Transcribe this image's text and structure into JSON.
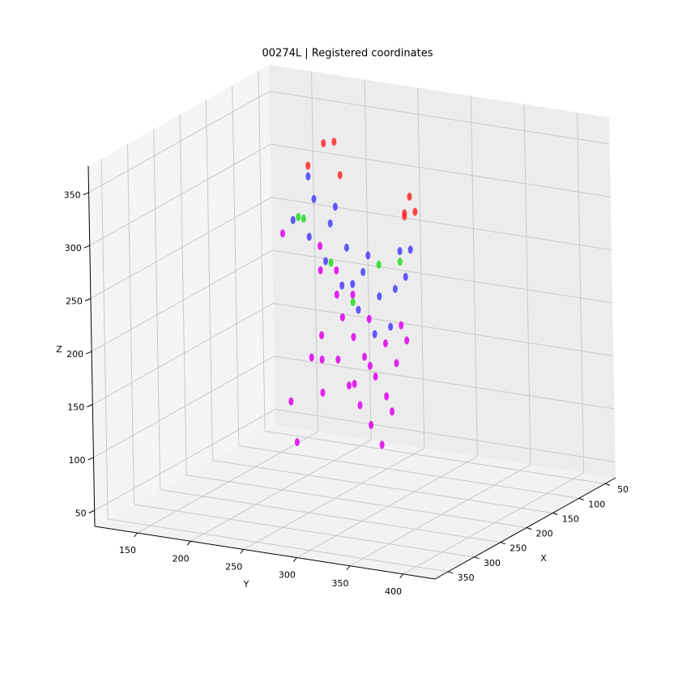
{
  "chart_data": {
    "type": "scatter3d",
    "title": "00274L | Registered coordinates",
    "xlabel": "X",
    "ylabel": "Y",
    "zlabel": "Z",
    "xlim": [
      30,
      375
    ],
    "ylim": [
      110,
      430
    ],
    "zlim": [
      35,
      375
    ],
    "xticks": [
      50,
      100,
      150,
      200,
      250,
      300,
      350
    ],
    "yticks": [
      150,
      200,
      250,
      300,
      350,
      400
    ],
    "zticks": [
      50,
      100,
      150,
      200,
      250,
      300,
      350
    ],
    "grid": true,
    "series": [
      {
        "color": "#e000f0",
        "x": [
          120,
          150,
          180,
          200,
          220,
          240,
          260,
          280,
          300,
          160,
          190,
          210,
          230,
          250,
          270,
          140,
          170,
          200,
          230,
          260,
          290,
          180,
          210,
          240,
          270,
          150,
          200,
          250,
          300,
          220
        ],
        "y": [
          200,
          230,
          250,
          270,
          290,
          310,
          330,
          350,
          370,
          220,
          260,
          280,
          300,
          320,
          340,
          210,
          240,
          270,
          300,
          330,
          360,
          230,
          260,
          290,
          320,
          180,
          210,
          240,
          280,
          250
        ],
        "z": [
          220,
          210,
          200,
          190,
          180,
          170,
          160,
          200,
          230,
          150,
          140,
          130,
          120,
          110,
          150,
          250,
          240,
          230,
          220,
          210,
          240,
          180,
          170,
          160,
          190,
          260,
          120,
          100,
          200,
          140
        ]
      },
      {
        "color": "#4a3cff",
        "x": [
          100,
          130,
          160,
          190,
          220,
          250,
          280,
          310,
          120,
          150,
          180,
          210,
          240,
          270,
          300,
          110,
          170,
          230,
          290,
          200
        ],
        "y": [
          180,
          200,
          230,
          260,
          290,
          320,
          350,
          380,
          190,
          220,
          250,
          280,
          310,
          340,
          370,
          170,
          240,
          300,
          360,
          270
        ],
        "z": [
          300,
          290,
          280,
          270,
          260,
          250,
          270,
          320,
          250,
          240,
          230,
          220,
          210,
          230,
          290,
          260,
          300,
          280,
          310,
          240
        ]
      },
      {
        "color": "#ff2a2a",
        "x": [
          90,
          110,
          140,
          300,
          310,
          320,
          100,
          280
        ],
        "y": [
          190,
          210,
          230,
          370,
          380,
          390,
          180,
          360
        ],
        "z": [
          330,
          340,
          320,
          350,
          370,
          360,
          310,
          340
        ]
      },
      {
        "color": "#22dd22",
        "x": [
          100,
          130,
          250,
          180,
          220,
          290
        ],
        "y": [
          170,
          190,
          320,
          240,
          280,
          360
        ],
        "z": [
          260,
          270,
          280,
          250,
          230,
          300
        ]
      }
    ]
  }
}
